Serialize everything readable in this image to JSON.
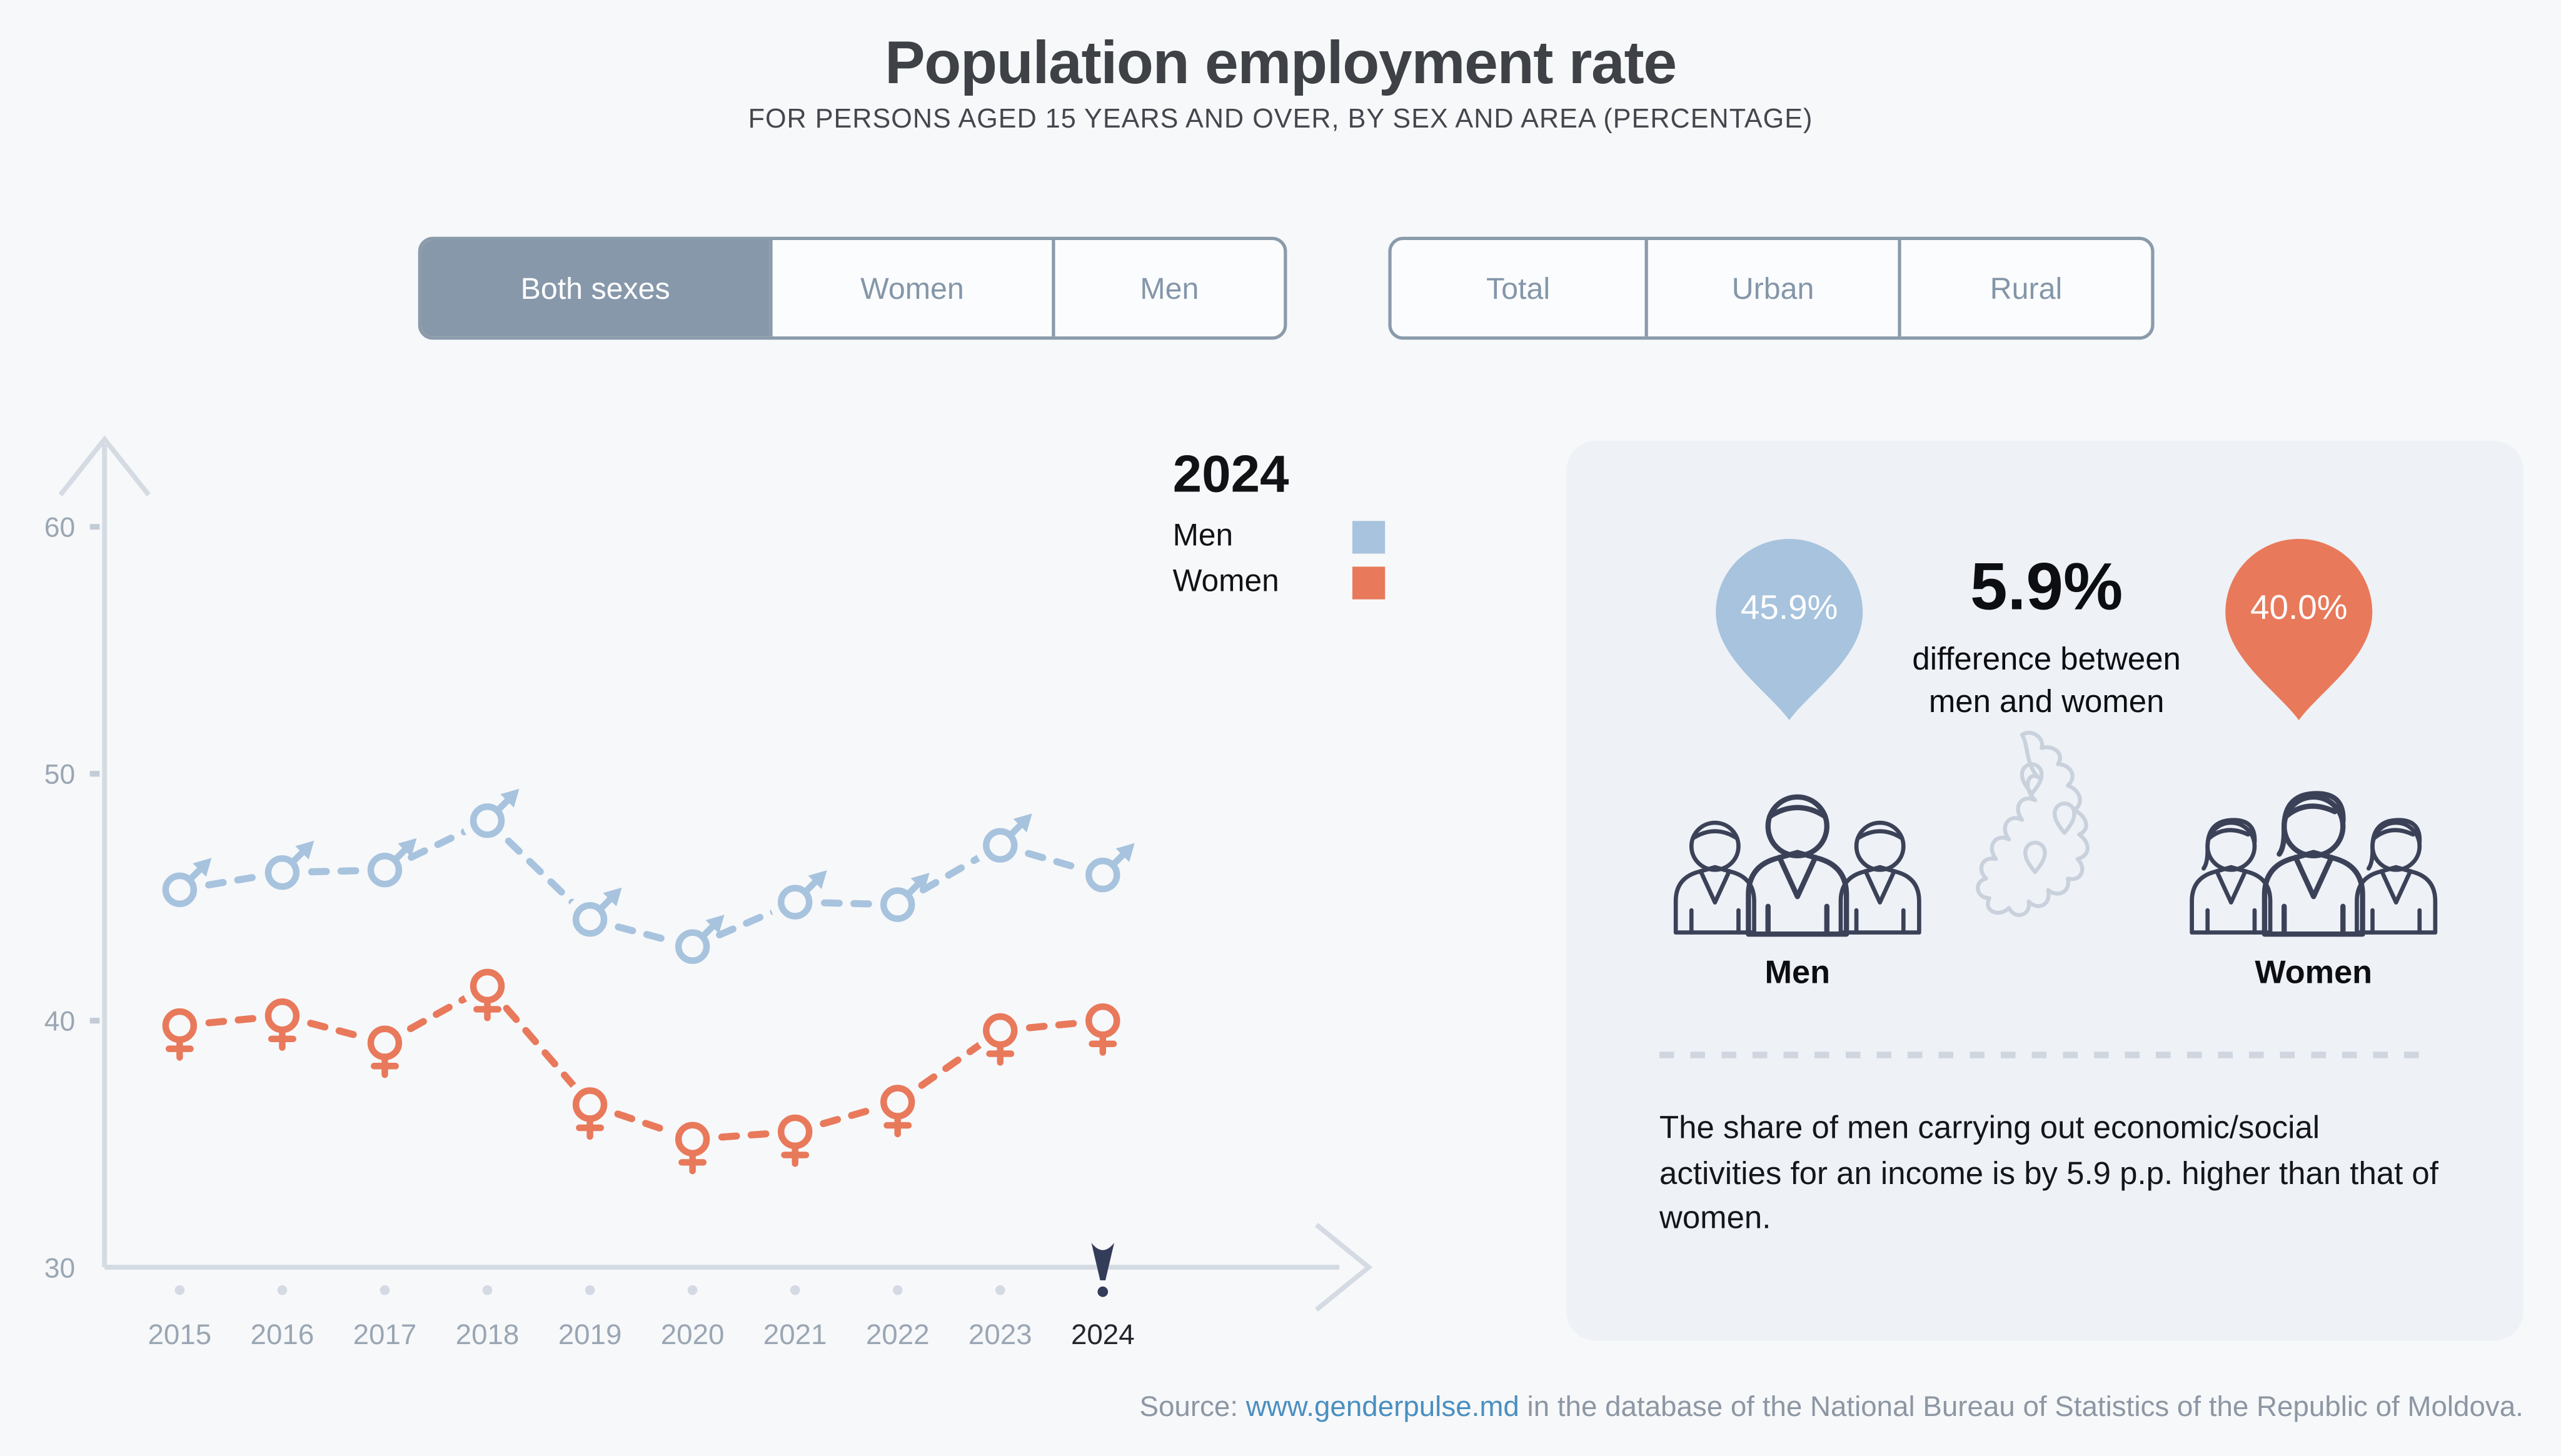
{
  "page": {
    "title": "Population employment rate",
    "subtitle": "FOR PERSONS AGED 15 YEARS AND OVER, BY SEX AND AREA (PERCENTAGE)",
    "source": {
      "prefix": "Source: ",
      "link": "www.genderpulse.md",
      "suffix": " in the database of the National Bureau of Statistics of the Republic of Moldova."
    }
  },
  "filters": {
    "sex": {
      "selected": "Both sexes",
      "options": [
        {
          "label": "Both sexes",
          "selected": true
        },
        {
          "label": "Women",
          "selected": false
        },
        {
          "label": "Men",
          "selected": false
        }
      ]
    },
    "area": {
      "selected": "",
      "options": [
        {
          "label": "Total",
          "selected": false
        },
        {
          "label": "Urban",
          "selected": false
        },
        {
          "label": "Rural",
          "selected": false
        }
      ]
    }
  },
  "legend": {
    "year": "2024",
    "items": [
      {
        "label": "Men",
        "color": "#a7c3de"
      },
      {
        "label": "Women",
        "color": "#e8795b"
      }
    ],
    "position": "top-right"
  },
  "chart_data": {
    "type": "line",
    "title": "Population employment rate",
    "x": [
      2015,
      2016,
      2017,
      2018,
      2019,
      2020,
      2021,
      2022,
      2023,
      2024
    ],
    "series": [
      {
        "name": "Men",
        "marker": "male-symbol",
        "color": "#a7c3de",
        "line_style": "dashed",
        "values": [
          45.3,
          46.0,
          46.1,
          48.1,
          44.1,
          43.0,
          44.8,
          44.7,
          47.1,
          45.9
        ]
      },
      {
        "name": "Women",
        "marker": "female-symbol",
        "color": "#e8795b",
        "line_style": "dashed",
        "values": [
          39.8,
          40.2,
          39.1,
          41.4,
          36.6,
          35.2,
          35.5,
          36.7,
          39.6,
          40.0
        ]
      }
    ],
    "xlabel": "",
    "ylabel": "",
    "ylim": [
      30,
      62
    ],
    "yticks": [
      30,
      40,
      50,
      60
    ],
    "grid": false,
    "highlight_x": 2024,
    "axis_color": "#d5dbe3",
    "tick_label_color": "#9aa6b3",
    "highlight_label_color": "#23262c",
    "highlight_marker_color": "#333c59"
  },
  "panel": {
    "men_pin": {
      "value": "45.9%",
      "color": "#a7c3de"
    },
    "women_pin": {
      "value": "40.0%",
      "color": "#e8795b"
    },
    "difference": {
      "value": "5.9%",
      "caption": "difference between men and women"
    },
    "men_label": "Men",
    "women_label": "Women",
    "note": "The share of men carrying out economic/social activities for an income is by 5.9 p.p. higher than that of women."
  }
}
